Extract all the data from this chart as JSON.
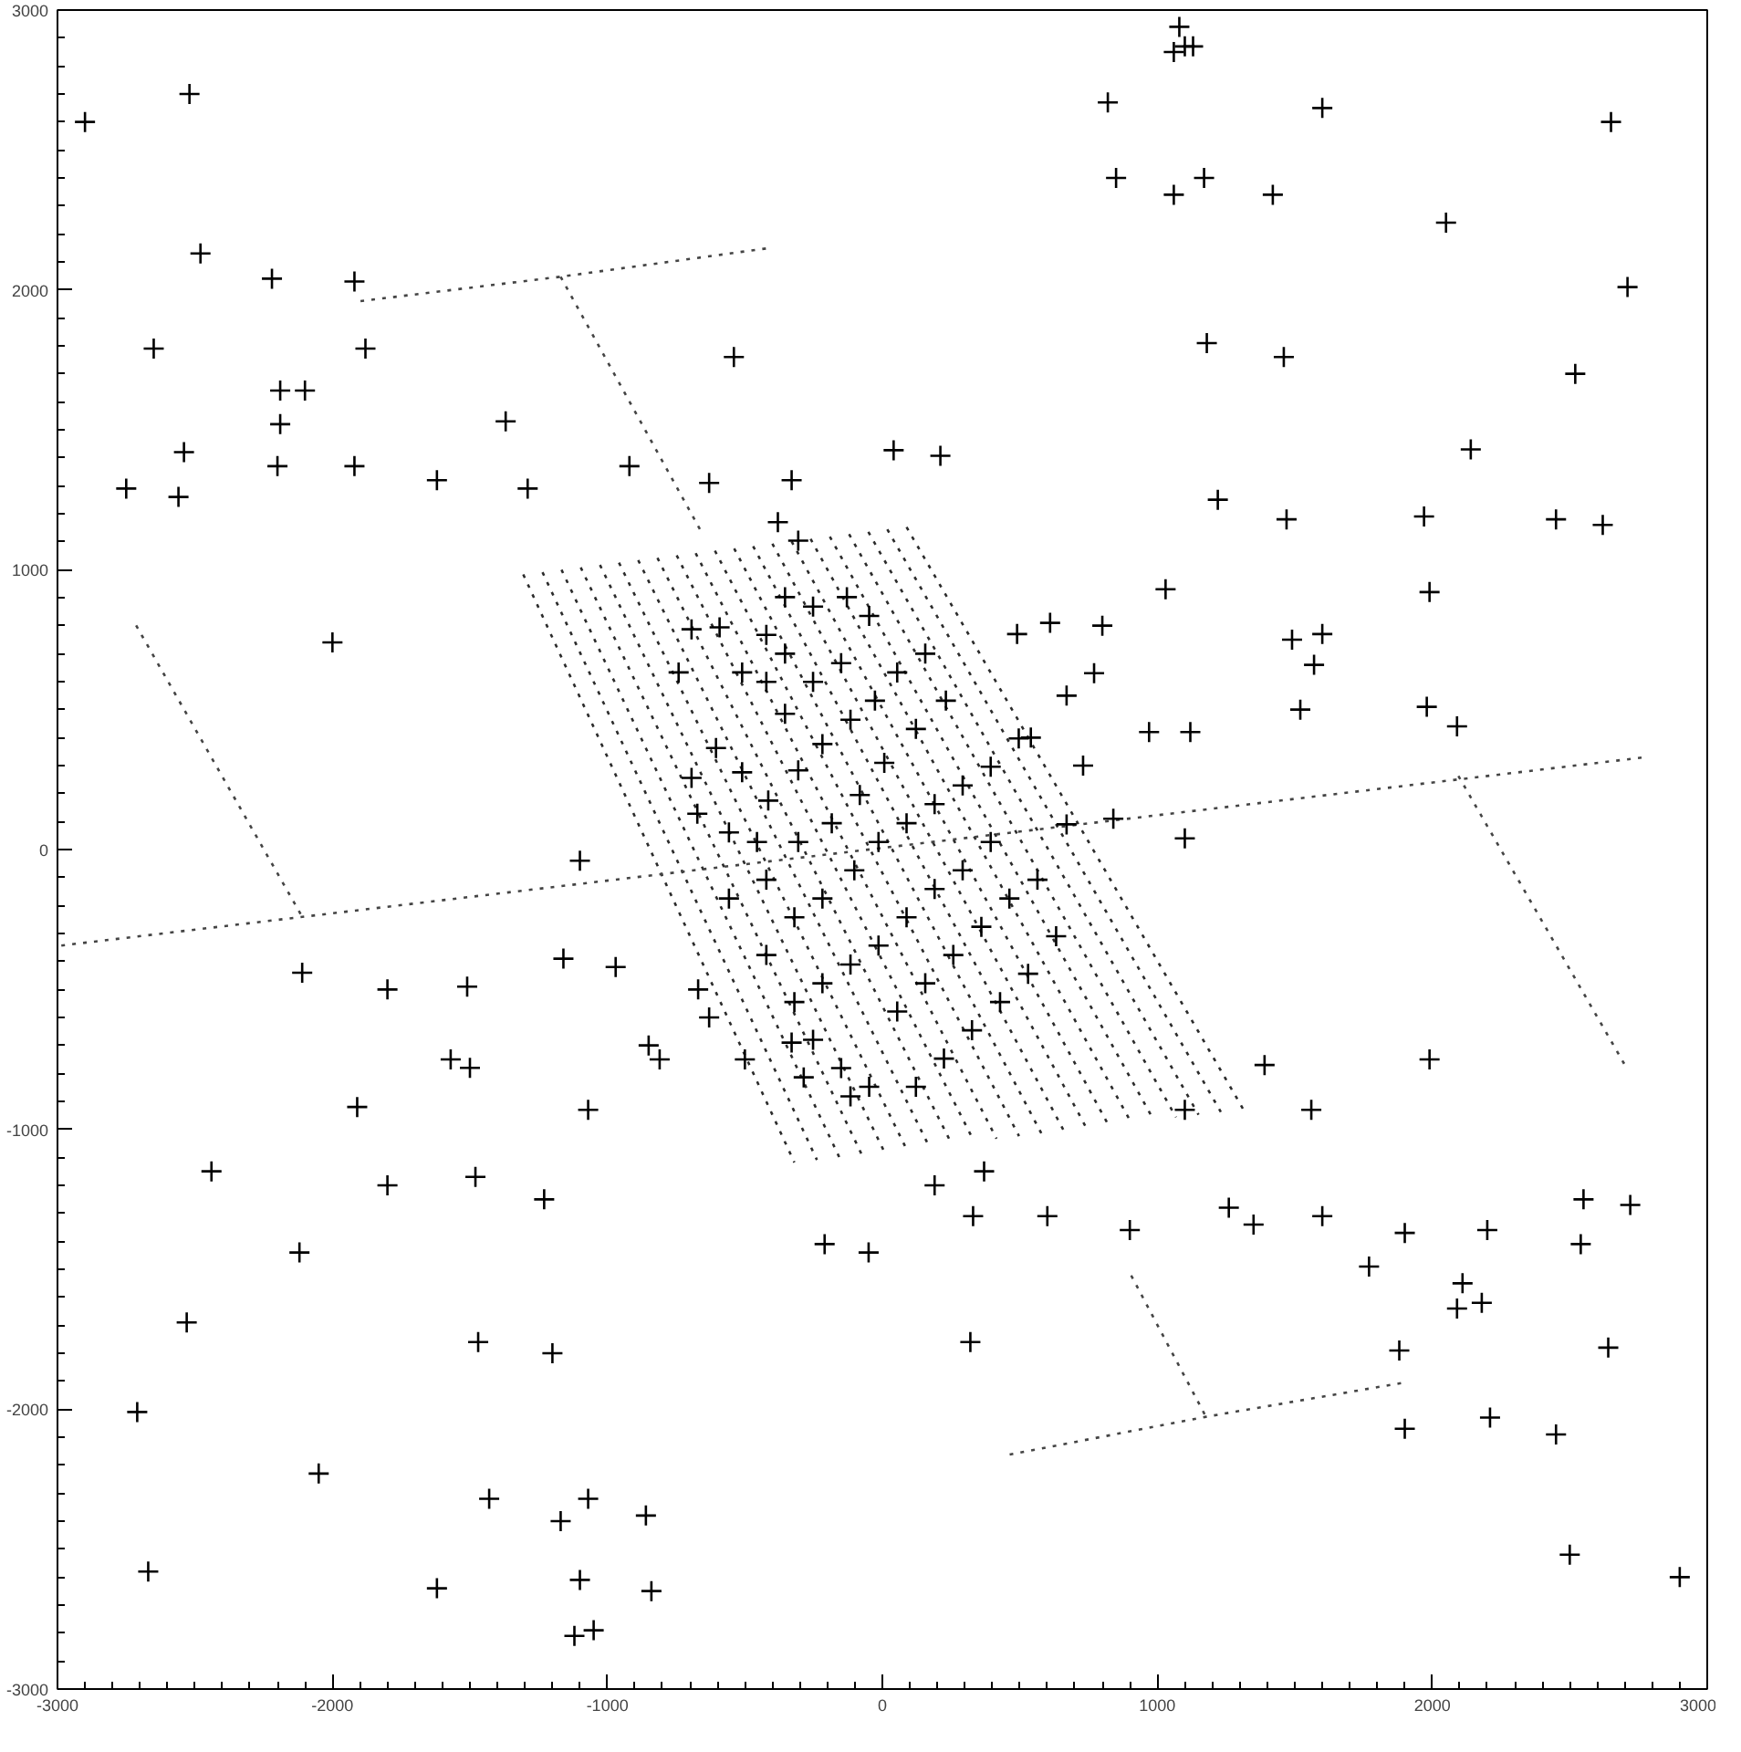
{
  "chart_data": {
    "type": "scatter",
    "grid": false,
    "xlim": [
      -3000,
      3000
    ],
    "ylim": [
      -3000,
      3000
    ],
    "xticks": [
      -3000,
      -2000,
      -1000,
      0,
      1000,
      2000,
      3000
    ],
    "yticks": [
      -3000,
      -2000,
      -1000,
      0,
      1000,
      2000,
      3000
    ],
    "series": [
      {
        "type": "line",
        "line_style": "dotted",
        "color": "#2b2b2b",
        "x": [
          -1306,
          -320,
          null,
          -1236,
          -238,
          null,
          -1167,
          -157,
          null,
          -1097,
          -75,
          null,
          -1027,
          7,
          null,
          -958,
          88,
          null,
          -888,
          170,
          null,
          -818,
          252,
          null,
          -748,
          333,
          null,
          -679,
          415,
          null,
          -609,
          497,
          null,
          -539,
          578,
          null,
          -470,
          660,
          null,
          -400,
          742,
          null,
          -330,
          823,
          null,
          -261,
          905,
          null,
          -191,
          987,
          null,
          -121,
          1068,
          null,
          -51,
          1150,
          null,
          18,
          1231,
          null,
          88,
          1313
        ],
        "values": [
          983,
          -1118,
          null,
          991,
          -1109,
          null,
          1000,
          -1099,
          null,
          1008,
          -1090,
          null,
          1017,
          -1080,
          null,
          1025,
          -1071,
          null,
          1034,
          -1061,
          null,
          1042,
          -1052,
          null,
          1051,
          -1042,
          null,
          1059,
          -1033,
          null,
          1068,
          -1024,
          null,
          1076,
          -1014,
          null,
          1084,
          -1005,
          null,
          1093,
          -995,
          null,
          1101,
          -986,
          null,
          1110,
          -976,
          null,
          1118,
          -967,
          null,
          1127,
          -957,
          null,
          1135,
          -948,
          null,
          1144,
          -938,
          null,
          1152,
          -929
        ]
      },
      {
        "type": "line",
        "line_style": "dotted",
        "color": "#444444",
        "x": [
          -2986,
          2776,
          null,
          -2714,
          -2109,
          null,
          -1898,
          -1170,
          -422,
          null,
          -1170,
          -660,
          null,
          463,
          1177,
          1891,
          null,
          905,
          1177,
          null,
          2095,
          2707
        ],
        "values": [
          -343,
          330,
          null,
          801,
          -242,
          null,
          1960,
          2047,
          2148,
          null,
          2047,
          1138,
          null,
          -2162,
          -2027,
          -1906,
          null,
          -1522,
          -2027,
          null,
          263,
          -781
        ]
      },
      {
        "color": "#000000",
        "marker": "cross",
        "x": [
          -2900,
          -2520,
          -2480,
          -2650,
          -2750,
          -2540,
          -2560,
          -1920,
          -2220,
          -2190,
          -2190,
          -2100,
          -2200,
          -1880,
          -1920,
          -2000,
          -1620,
          -1370,
          -1290,
          -540,
          -330,
          -630,
          -920,
          -1100,
          -2110,
          -1800,
          -1570,
          -1500,
          -1510,
          -1910,
          -1800,
          -2440,
          -2120,
          -2530,
          -2710,
          -2670,
          -2050,
          -1470,
          -1480,
          -1430,
          -1200,
          -1170,
          -1070,
          -1100,
          -1120,
          -1050,
          -860,
          -840,
          -1620,
          -1230,
          -1070,
          -850,
          -810,
          -1160,
          -970,
          -630,
          -670,
          -500,
          -330,
          -210,
          -50,
          330,
          190,
          370,
          320,
          600,
          900,
          1100,
          1260,
          1350,
          1390,
          1560,
          1770,
          1600,
          1900,
          1990,
          2110,
          2180,
          2090,
          2200,
          2210,
          1900,
          1880,
          2450,
          2500,
          2550,
          2540,
          2720,
          2640,
          2900,
          1080,
          1100,
          1130,
          1060,
          820,
          850,
          1060,
          1170,
          1420,
          1600,
          2050,
          2650,
          2710,
          2520,
          2140,
          2450,
          2620,
          1460,
          1180,
          1220,
          1470,
          1970,
          1990,
          1980,
          2090,
          1490,
          1570,
          1600,
          1520,
          1030,
          970,
          1120,
          1100,
          800,
          610,
          490,
          770,
          670,
          540,
          730,
          840,
          670,
          -741,
          -694,
          -592,
          -510,
          -422,
          -354,
          -605,
          -694,
          -510,
          -415,
          -306,
          -218,
          -116,
          -27,
          54,
          156,
          231,
          122,
          7,
          -82,
          -184,
          -306,
          -456,
          -558,
          -673,
          -558,
          -422,
          -320,
          -218,
          -102,
          -14,
          88,
          190,
          292,
          394,
          496,
          394,
          292,
          190,
          88,
          -14,
          -116,
          -218,
          -320,
          -422,
          -252,
          -150,
          -48,
          54,
          156,
          258,
          360,
          462,
          564,
          632,
          530,
          428,
          326,
          224,
          122,
          -116,
          -286,
          -354,
          -252,
          -129,
          -48,
          -252,
          -150,
          -354,
          -422,
          -380,
          -306,
          41,
          211
        ],
        "values": [
          2600,
          2700,
          2130,
          1790,
          1290,
          1420,
          1260,
          2030,
          2040,
          1640,
          1520,
          1640,
          1370,
          1790,
          1370,
          740,
          1320,
          1530,
          1290,
          1760,
          1320,
          1310,
          1370,
          -40,
          -440,
          -500,
          -750,
          -780,
          -490,
          -920,
          -1200,
          -1150,
          -1440,
          -1690,
          -2010,
          -2580,
          -2230,
          -1760,
          -1170,
          -2320,
          -1800,
          -2400,
          -2320,
          -2610,
          -2810,
          -2790,
          -2380,
          -2650,
          -2640,
          -1250,
          -930,
          -700,
          -750,
          -390,
          -420,
          -600,
          -500,
          -750,
          -690,
          -1410,
          -1440,
          -1310,
          -1200,
          -1150,
          -1760,
          -1310,
          -1360,
          -930,
          -1280,
          -1340,
          -770,
          -930,
          -1490,
          -1310,
          -1370,
          -750,
          -1550,
          -1620,
          -1640,
          -1360,
          -2030,
          -2070,
          -1790,
          -2090,
          -2520,
          -1250,
          -1410,
          -1270,
          -1780,
          -2600,
          2940,
          2870,
          2870,
          2850,
          2670,
          2400,
          2340,
          2400,
          2340,
          2650,
          2240,
          2600,
          2010,
          1700,
          1430,
          1180,
          1160,
          1760,
          1810,
          1250,
          1180,
          1190,
          920,
          510,
          440,
          750,
          660,
          770,
          500,
          930,
          420,
          420,
          40,
          800,
          810,
          770,
          630,
          550,
          400,
          300,
          110,
          90,
          633,
          787,
          794,
          633,
          599,
          485,
          363,
          256,
          276,
          175,
          283,
          377,
          464,
          532,
          633,
          700,
          532,
          431,
          310,
          195,
          94,
          27,
          27,
          61,
          128,
          -175,
          -108,
          -242,
          -175,
          -74,
          27,
          94,
          162,
          229,
          296,
          397,
          27,
          -74,
          -141,
          -242,
          -343,
          -411,
          -478,
          -545,
          -377,
          -680,
          -781,
          -848,
          -579,
          -478,
          -377,
          -276,
          -175,
          -108,
          -310,
          -444,
          -545,
          -646,
          -747,
          -848,
          -882,
          -814,
          700,
          868,
          902,
          835,
          599,
          666,
          902,
          767,
          1170,
          1104,
          1427,
          1407
        ]
      }
    ]
  }
}
